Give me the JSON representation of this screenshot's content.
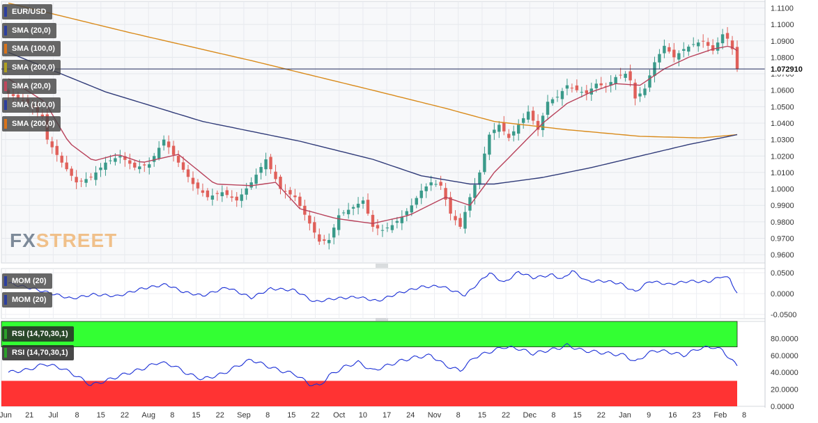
{
  "instrument": "EUR/USD",
  "last_price": "1.072910",
  "watermark": "FXSTREET",
  "indicators": {
    "price": [
      {
        "label": "SMA (20,0)",
        "color": "#2c3e9e"
      },
      {
        "label": "SMA (100,0)",
        "color": "#d9731a"
      },
      {
        "label": "SMA (200,0)",
        "color": "#b0a020"
      },
      {
        "label": "SMA (20,0)",
        "color": "#c0475c"
      },
      {
        "label": "SMA (100,0)",
        "color": "#2c3e9e"
      },
      {
        "label": "SMA (200,0)",
        "color": "#d9731a"
      }
    ],
    "mom": [
      {
        "label": "MOM (20)"
      },
      {
        "label": "MOM (20)"
      }
    ],
    "rsi": [
      {
        "label": "RSI (14,70,30,1)"
      },
      {
        "label": "RSI (14,70,30,1)"
      }
    ]
  },
  "colors": {
    "up": "#3a9a8a",
    "down": "#e0605a",
    "sma20": "#b8415a",
    "sma100": "#2f3a78",
    "sma200": "#d98a1a",
    "mom": "#1a2fd6",
    "rsi": "#1a2fd6",
    "overbought": "#33ff33",
    "oversold": "#ff3333",
    "price_line": "#1f2a5a"
  },
  "chart_data": [
    {
      "type": "candlestick",
      "title": "EUR/USD",
      "ylim": [
        0.955,
        1.114
      ],
      "y_ticks": [
        "1.1100",
        "1.1000",
        "1.0900",
        "1.0800",
        "1.0700",
        "1.0600",
        "1.0500",
        "1.0400",
        "1.0300",
        "1.0200",
        "1.0100",
        "1.0000",
        "0.9900",
        "0.9800",
        "0.9700",
        "0.9600"
      ],
      "x_tick_labels": [
        "Jun",
        "21",
        "Jul",
        "8",
        "15",
        "22",
        "Aug",
        "8",
        "15",
        "22",
        "Sep",
        "8",
        "15",
        "22",
        "Oct",
        "10",
        "17",
        "24",
        "Nov",
        "8",
        "15",
        "22",
        "Dec",
        "8",
        "15",
        "22",
        "Jan",
        "9",
        "16",
        "23",
        "Feb",
        "8"
      ],
      "close_anchors": [
        [
          0,
          1.058
        ],
        [
          8,
          1.052
        ],
        [
          14,
          1.044
        ],
        [
          16,
          1.03
        ],
        [
          22,
          1.016
        ],
        [
          28,
          1.004
        ],
        [
          34,
          1.007
        ],
        [
          40,
          1.016
        ],
        [
          46,
          1.02
        ],
        [
          52,
          1.013
        ],
        [
          58,
          1.015
        ],
        [
          64,
          1.03
        ],
        [
          70,
          1.016
        ],
        [
          76,
          1.003
        ],
        [
          82,
          0.995
        ],
        [
          88,
          0.998
        ],
        [
          94,
          0.993
        ],
        [
          100,
          1.004
        ],
        [
          106,
          1.018
        ],
        [
          112,
          1.0
        ],
        [
          118,
          0.995
        ],
        [
          124,
          0.979
        ],
        [
          128,
          0.968
        ],
        [
          132,
          0.969
        ],
        [
          136,
          0.984
        ],
        [
          142,
          0.989
        ],
        [
          146,
          0.993
        ],
        [
          150,
          0.977
        ],
        [
          154,
          0.975
        ],
        [
          158,
          0.978
        ],
        [
          162,
          0.983
        ],
        [
          166,
          0.99
        ],
        [
          170,
          0.999
        ],
        [
          174,
          1.004
        ],
        [
          178,
          1.002
        ],
        [
          182,
          0.985
        ],
        [
          186,
          0.977
        ],
        [
          190,
          0.995
        ],
        [
          194,
          1.01
        ],
        [
          198,
          1.033
        ],
        [
          202,
          1.039
        ],
        [
          206,
          1.031
        ],
        [
          210,
          1.039
        ],
        [
          214,
          1.047
        ],
        [
          218,
          1.036
        ],
        [
          222,
          1.053
        ],
        [
          226,
          1.056
        ],
        [
          230,
          1.063
        ],
        [
          234,
          1.06
        ],
        [
          238,
          1.058
        ],
        [
          242,
          1.064
        ],
        [
          246,
          1.062
        ],
        [
          250,
          1.068
        ],
        [
          254,
          1.07
        ],
        [
          256,
          1.066
        ],
        [
          258,
          1.055
        ],
        [
          262,
          1.061
        ],
        [
          266,
          1.077
        ],
        [
          270,
          1.087
        ],
        [
          274,
          1.08
        ],
        [
          278,
          1.085
        ],
        [
          282,
          1.088
        ],
        [
          286,
          1.09
        ],
        [
          290,
          1.084
        ],
        [
          294,
          1.094
        ],
        [
          297,
          1.09
        ],
        [
          299,
          1.08
        ],
        [
          300,
          1.0729
        ]
      ],
      "sma20": [
        [
          0,
          1.067
        ],
        [
          15,
          1.053
        ],
        [
          25,
          1.028
        ],
        [
          35,
          1.017
        ],
        [
          45,
          1.021
        ],
        [
          55,
          1.016
        ],
        [
          70,
          1.021
        ],
        [
          85,
          1.003
        ],
        [
          100,
          1.002
        ],
        [
          110,
          1.004
        ],
        [
          120,
          0.988
        ],
        [
          135,
          0.982
        ],
        [
          150,
          0.979
        ],
        [
          165,
          0.984
        ],
        [
          180,
          0.995
        ],
        [
          190,
          0.99
        ],
        [
          200,
          1.01
        ],
        [
          210,
          1.025
        ],
        [
          220,
          1.04
        ],
        [
          230,
          1.052
        ],
        [
          240,
          1.059
        ],
        [
          250,
          1.064
        ],
        [
          260,
          1.063
        ],
        [
          270,
          1.073
        ],
        [
          280,
          1.08
        ],
        [
          290,
          1.085
        ],
        [
          297,
          1.087
        ],
        [
          300,
          1.084
        ]
      ],
      "sma100": [
        [
          0,
          1.083
        ],
        [
          40,
          1.059
        ],
        [
          80,
          1.041
        ],
        [
          120,
          1.029
        ],
        [
          150,
          1.018
        ],
        [
          170,
          1.008
        ],
        [
          190,
          1.003
        ],
        [
          200,
          1.003
        ],
        [
          220,
          1.007
        ],
        [
          240,
          1.013
        ],
        [
          260,
          1.02
        ],
        [
          280,
          1.027
        ],
        [
          300,
          1.033
        ]
      ],
      "sma200": [
        [
          0,
          1.113
        ],
        [
          50,
          1.095
        ],
        [
          100,
          1.078
        ],
        [
          150,
          1.06
        ],
        [
          180,
          1.049
        ],
        [
          200,
          1.041
        ],
        [
          230,
          1.036
        ],
        [
          260,
          1.032
        ],
        [
          285,
          1.031
        ],
        [
          300,
          1.033
        ]
      ]
    },
    {
      "type": "line",
      "title": "MOM (20)",
      "ylim": [
        -0.06,
        0.06
      ],
      "y_ticks": [
        "0.0500",
        "0.0000",
        "-0.0500"
      ],
      "values": [
        [
          0,
          0.025
        ],
        [
          10,
          0.012
        ],
        [
          20,
          -0.003
        ],
        [
          26,
          -0.012
        ],
        [
          35,
          -0.002
        ],
        [
          45,
          -0.006
        ],
        [
          55,
          0.012
        ],
        [
          65,
          0.022
        ],
        [
          72,
          0.004
        ],
        [
          80,
          -0.005
        ],
        [
          90,
          0.015
        ],
        [
          100,
          -0.01
        ],
        [
          108,
          0.012
        ],
        [
          118,
          0.008
        ],
        [
          126,
          -0.02
        ],
        [
          134,
          -0.012
        ],
        [
          144,
          -0.008
        ],
        [
          152,
          -0.018
        ],
        [
          160,
          0.0
        ],
        [
          170,
          0.016
        ],
        [
          178,
          0.018
        ],
        [
          188,
          -0.004
        ],
        [
          198,
          0.05
        ],
        [
          204,
          0.026
        ],
        [
          210,
          0.052
        ],
        [
          216,
          0.038
        ],
        [
          224,
          0.045
        ],
        [
          228,
          0.034
        ],
        [
          232,
          0.055
        ],
        [
          238,
          0.03
        ],
        [
          246,
          0.03
        ],
        [
          252,
          0.024
        ],
        [
          258,
          0.004
        ],
        [
          264,
          0.03
        ],
        [
          272,
          0.022
        ],
        [
          280,
          0.03
        ],
        [
          288,
          0.028
        ],
        [
          294,
          0.042
        ],
        [
          297,
          0.035
        ],
        [
          300,
          0.0
        ]
      ]
    },
    {
      "type": "line",
      "title": "RSI (14,70,30,1)",
      "ylim": [
        0,
        100
      ],
      "y_ticks": [
        "80.0000",
        "60.0000",
        "40.0000",
        "20.0000",
        "0.0000"
      ],
      "overbought": 70,
      "oversold": 30,
      "values": [
        [
          0,
          40
        ],
        [
          8,
          43
        ],
        [
          15,
          50
        ],
        [
          22,
          45
        ],
        [
          28,
          36
        ],
        [
          34,
          25
        ],
        [
          40,
          30
        ],
        [
          48,
          38
        ],
        [
          55,
          44
        ],
        [
          62,
          52
        ],
        [
          68,
          48
        ],
        [
          74,
          38
        ],
        [
          80,
          32
        ],
        [
          88,
          38
        ],
        [
          96,
          50
        ],
        [
          100,
          55
        ],
        [
          106,
          48
        ],
        [
          112,
          42
        ],
        [
          118,
          38
        ],
        [
          124,
          26
        ],
        [
          128,
          24
        ],
        [
          132,
          36
        ],
        [
          138,
          46
        ],
        [
          144,
          52
        ],
        [
          150,
          42
        ],
        [
          156,
          48
        ],
        [
          162,
          54
        ],
        [
          168,
          58
        ],
        [
          174,
          60
        ],
        [
          180,
          48
        ],
        [
          186,
          42
        ],
        [
          192,
          58
        ],
        [
          198,
          64
        ],
        [
          204,
          70
        ],
        [
          210,
          68
        ],
        [
          216,
          62
        ],
        [
          222,
          66
        ],
        [
          226,
          68
        ],
        [
          230,
          72
        ],
        [
          236,
          66
        ],
        [
          242,
          64
        ],
        [
          248,
          62
        ],
        [
          254,
          60
        ],
        [
          258,
          52
        ],
        [
          262,
          60
        ],
        [
          266,
          66
        ],
        [
          272,
          64
        ],
        [
          278,
          60
        ],
        [
          284,
          68
        ],
        [
          290,
          70
        ],
        [
          294,
          66
        ],
        [
          297,
          56
        ],
        [
          300,
          48
        ]
      ]
    }
  ]
}
